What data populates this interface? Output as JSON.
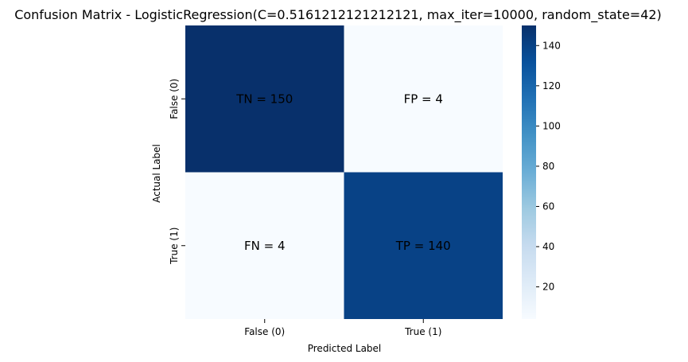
{
  "chart_data": {
    "type": "heatmap",
    "title": "Confusion Matrix - LogisticRegression(C=0.5161212121212121, max_iter=10000, random_state=42)",
    "xlabel": "Predicted Label",
    "ylabel": "Actual Label",
    "x_categories": [
      "False (0)",
      "True (1)"
    ],
    "y_categories": [
      "False (0)",
      "True (1)"
    ],
    "values": [
      [
        150,
        4
      ],
      [
        4,
        140
      ]
    ],
    "cell_labels": [
      [
        "TN = 150",
        "FP = 4"
      ],
      [
        "FN = 4",
        "TP = 140"
      ]
    ],
    "colormap": "Blues",
    "colorbar": {
      "min": 4,
      "max": 150,
      "ticks": [
        20,
        40,
        60,
        80,
        100,
        120,
        140
      ]
    },
    "grid": false
  }
}
